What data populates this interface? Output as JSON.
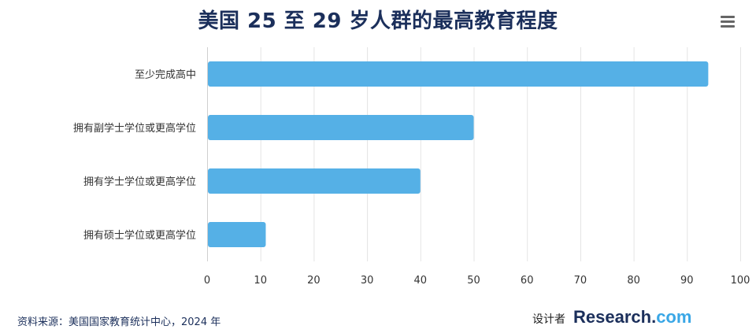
{
  "header": {
    "title": "美国 25 至 29 岁人群的最高教育程度"
  },
  "footer": {
    "source": "资料来源：美国国家教育统计中心，2024 年",
    "credit_label": "设计者",
    "brand_main": "Research.",
    "brand_tld": "com"
  },
  "colors": {
    "bar": "#55b0e6",
    "title": "#1b2f5b",
    "brand_accent": "#3aa7e6"
  },
  "chart_data": {
    "type": "bar",
    "orientation": "horizontal",
    "title": "美国 25 至 29 岁人群的最高教育程度",
    "categories": [
      "至少完成高中",
      "拥有副学士学位或更高学位",
      "拥有学士学位或更高学位",
      "拥有硕士学位或更高学位"
    ],
    "values": [
      94,
      50,
      40,
      11
    ],
    "xlim": [
      0,
      100
    ],
    "xticks": [
      0,
      10,
      20,
      30,
      40,
      50,
      60,
      70,
      80,
      90,
      100
    ],
    "xlabel": "",
    "ylabel": "",
    "grid": "vertical"
  }
}
